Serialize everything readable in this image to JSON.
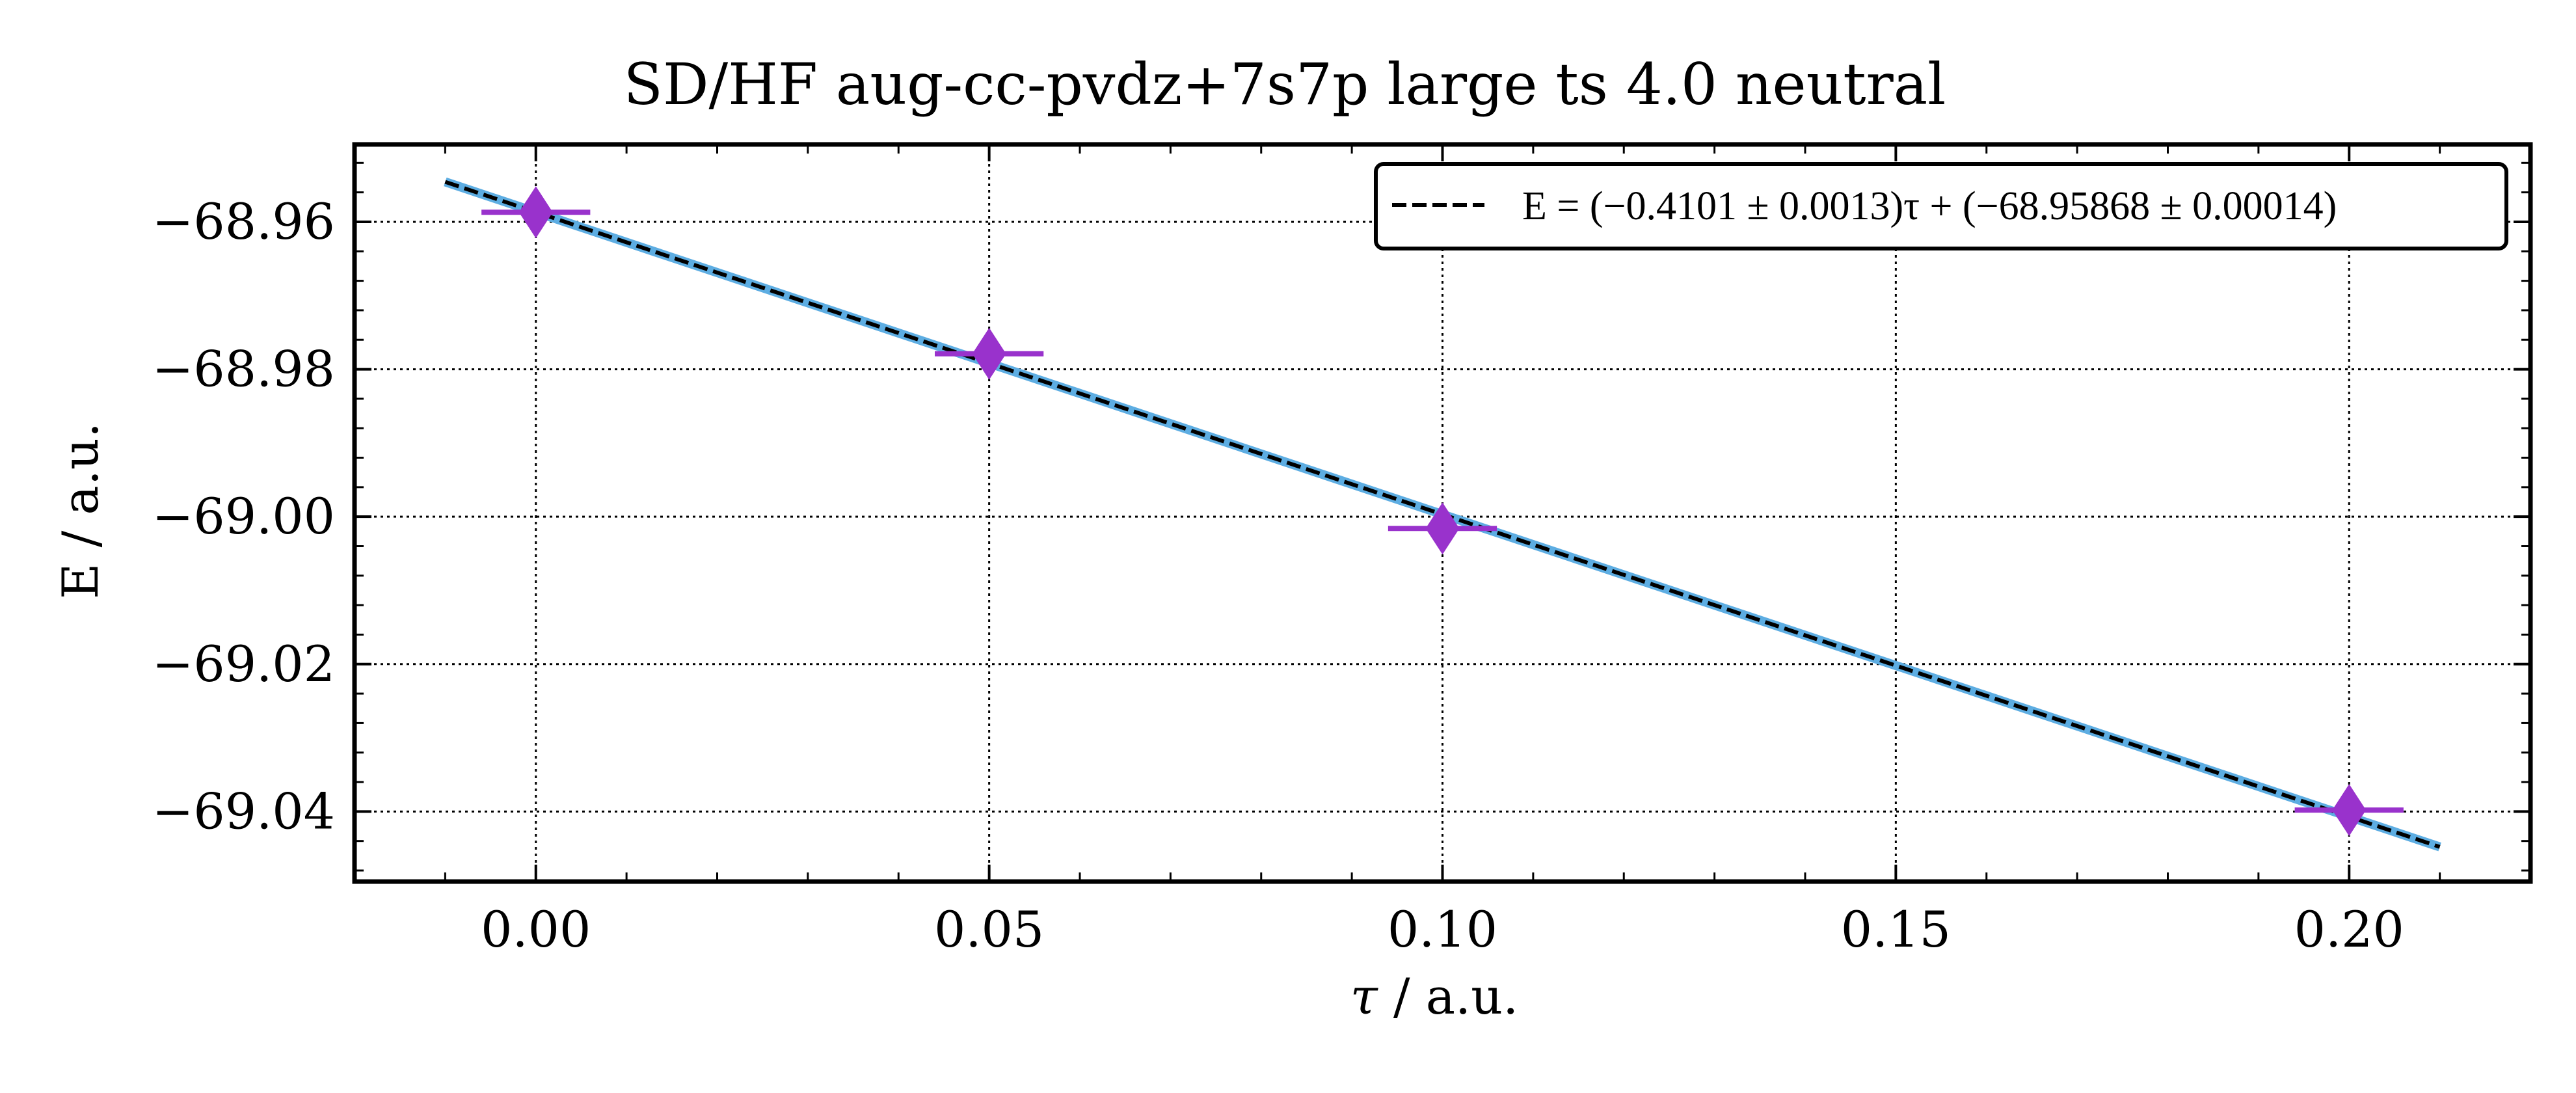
{
  "chart_data": {
    "type": "scatter",
    "title": "SD/HF aug-cc-pvdz+7s7p large ts 4.0 neutral",
    "xlabel_symbol": "τ",
    "xlabel_unit": " / a.u.",
    "ylabel": "E / a.u.",
    "xlim": [
      -0.02,
      0.22
    ],
    "ylim": [
      -69.0495,
      -68.9495
    ],
    "x_ticks": [
      0.0,
      0.05,
      0.1,
      0.15,
      0.2
    ],
    "x_tick_labels": [
      "0.00",
      "0.05",
      "0.10",
      "0.15",
      "0.20"
    ],
    "y_ticks": [
      -68.96,
      -68.98,
      -69.0,
      -69.02,
      -69.04
    ],
    "y_tick_labels": [
      "−68.96",
      "−68.98",
      "−69.00",
      "−69.02",
      "−69.04"
    ],
    "grid": true,
    "legend_position": "top-right",
    "series": [
      {
        "marker": "thin-diamond",
        "color": "#9932cc",
        "x": [
          0.0,
          0.05,
          0.1,
          0.2
        ],
        "y": [
          -68.9587,
          -68.9779,
          -69.0016,
          -69.0398
        ],
        "x_err": [
          0.006,
          0.006,
          0.006,
          0.006
        ]
      }
    ],
    "fit": {
      "label": "E = (−0.4101 ± 0.0013)τ + (−68.95868 ± 0.00014)",
      "slope": -0.4101,
      "intercept": -68.95868,
      "x_range": [
        -0.01,
        0.21
      ],
      "line_color": "#000000",
      "band_color": "#5dade2"
    }
  }
}
